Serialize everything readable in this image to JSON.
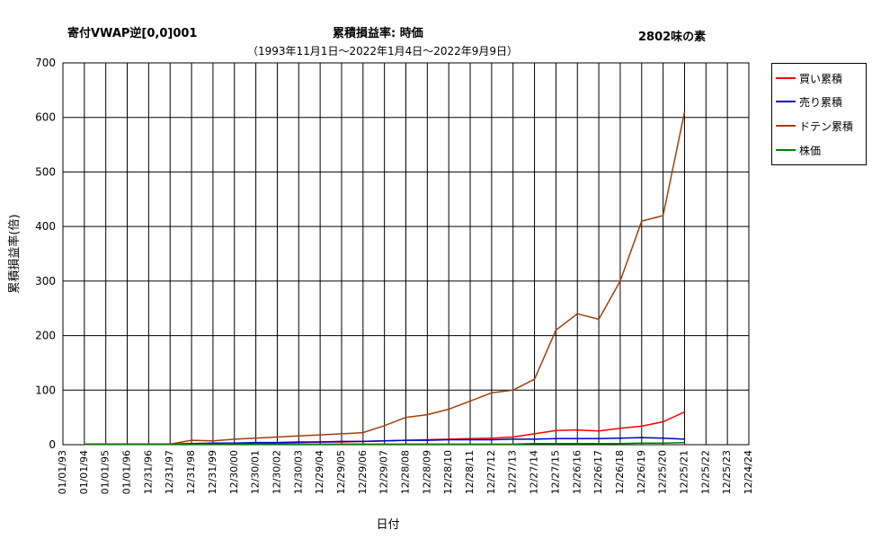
{
  "header": {
    "left": "寄付VWAP逆[0,0]001",
    "center": "累積損益率:  時価",
    "right": "2802味の素",
    "period": "（1993年11月1日～2022年1月4日～2022年9月9日）"
  },
  "chart_data": {
    "type": "line",
    "title": "累積損益率:  時価",
    "xlabel": "日付",
    "ylabel": "累積損益率(倍)",
    "ylim": [
      0,
      700
    ],
    "yticks": [
      0,
      100,
      200,
      300,
      400,
      500,
      600,
      700
    ],
    "grid": true,
    "legend_position": "right",
    "x": [
      "01/01/93",
      "01/01/94",
      "01/01/95",
      "01/01/96",
      "12/31/96",
      "12/31/97",
      "12/31/98",
      "12/31/99",
      "12/30/00",
      "12/30/01",
      "12/30/02",
      "12/30/03",
      "12/29/04",
      "12/29/05",
      "12/29/06",
      "12/29/07",
      "12/28/08",
      "12/28/09",
      "12/28/10",
      "12/28/11",
      "12/27/12",
      "12/27/13",
      "12/27/14",
      "12/27/15",
      "12/26/16",
      "12/26/17",
      "12/26/18",
      "12/26/19",
      "12/25/20",
      "12/25/21",
      "12/25/22",
      "12/25/23",
      "12/24/24"
    ],
    "series": [
      {
        "name": "買い累積",
        "color": "#ff0000",
        "values": [
          null,
          1,
          1,
          1,
          1,
          1,
          2,
          2,
          3,
          3,
          3,
          4,
          5,
          5,
          6,
          7,
          8,
          9,
          10,
          11,
          12,
          14,
          20,
          26,
          27,
          25,
          30,
          34,
          42,
          60,
          null,
          null,
          null
        ]
      },
      {
        "name": "売り累積",
        "color": "#0000cc",
        "values": [
          null,
          1,
          1,
          1,
          1,
          1,
          2,
          3,
          3,
          4,
          4,
          5,
          5,
          6,
          6,
          7,
          8,
          8,
          9,
          9,
          9,
          10,
          10,
          11,
          11,
          11,
          12,
          13,
          12,
          10,
          null,
          null,
          null
        ]
      },
      {
        "name": "ドテン累積",
        "color": "#a0400a",
        "values": [
          null,
          1,
          1,
          1,
          1,
          1,
          8,
          7,
          10,
          12,
          14,
          16,
          18,
          20,
          22,
          35,
          50,
          55,
          65,
          80,
          95,
          100,
          120,
          210,
          240,
          230,
          300,
          410,
          420,
          610,
          null,
          null,
          null
        ]
      },
      {
        "name": "株価",
        "color": "#008000",
        "values": [
          null,
          1,
          1,
          1,
          1,
          1,
          1,
          1,
          1,
          1,
          1,
          1,
          1,
          1,
          1,
          1,
          1,
          1,
          1,
          1,
          1,
          1,
          2,
          2,
          2,
          2,
          2,
          3,
          3,
          4,
          null,
          null,
          null
        ]
      }
    ]
  }
}
